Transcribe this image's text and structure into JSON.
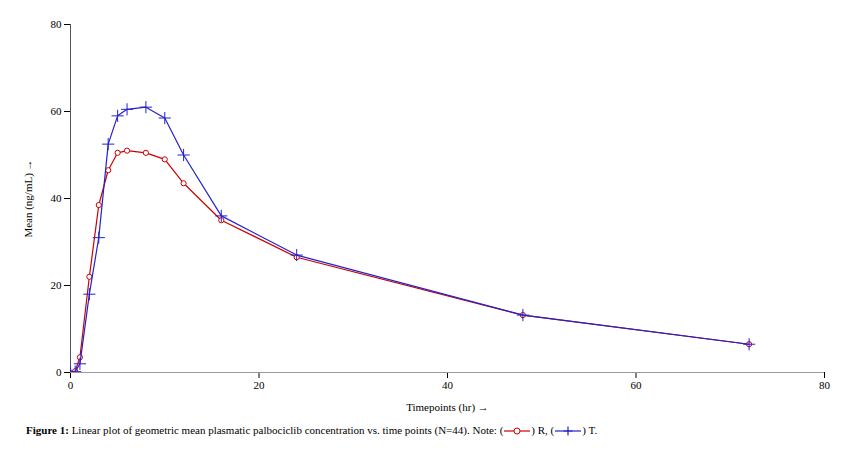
{
  "chart_data": {
    "type": "line",
    "caption": [
      "Figure 1:",
      " Linear plot of geometric mean plasmatic palbociclib concentration vs. time points (N=44). Note: (",
      ") R, (",
      ") T."
    ],
    "xlabel": "Timepoints (hr)",
    "ylabel": "Mean (ng/mL)",
    "x": [
      0,
      0.5,
      1,
      2,
      3,
      4,
      5,
      6,
      8,
      10,
      12,
      16,
      24,
      48,
      72
    ],
    "series": [
      {
        "name": "R",
        "color": "#cc0000",
        "marker": "circle",
        "values": [
          0,
          0.3,
          3.5,
          22.0,
          38.5,
          46.5,
          50.5,
          51.0,
          50.5,
          49.0,
          43.5,
          35.0,
          26.5,
          13.2,
          6.5
        ]
      },
      {
        "name": "T",
        "color": "#2222cc",
        "marker": "plus",
        "values": [
          0,
          0.2,
          2.0,
          18.0,
          31.0,
          52.5,
          59.0,
          60.5,
          61.0,
          58.5,
          50.0,
          36.0,
          27.0,
          13.2,
          6.5
        ]
      }
    ],
    "xlim": [
      0,
      80
    ],
    "ylim": [
      0,
      80
    ],
    "xticks": [
      0,
      20,
      40,
      60,
      80
    ],
    "yticks": [
      0,
      20,
      40,
      60,
      80
    ],
    "grid": false
  }
}
